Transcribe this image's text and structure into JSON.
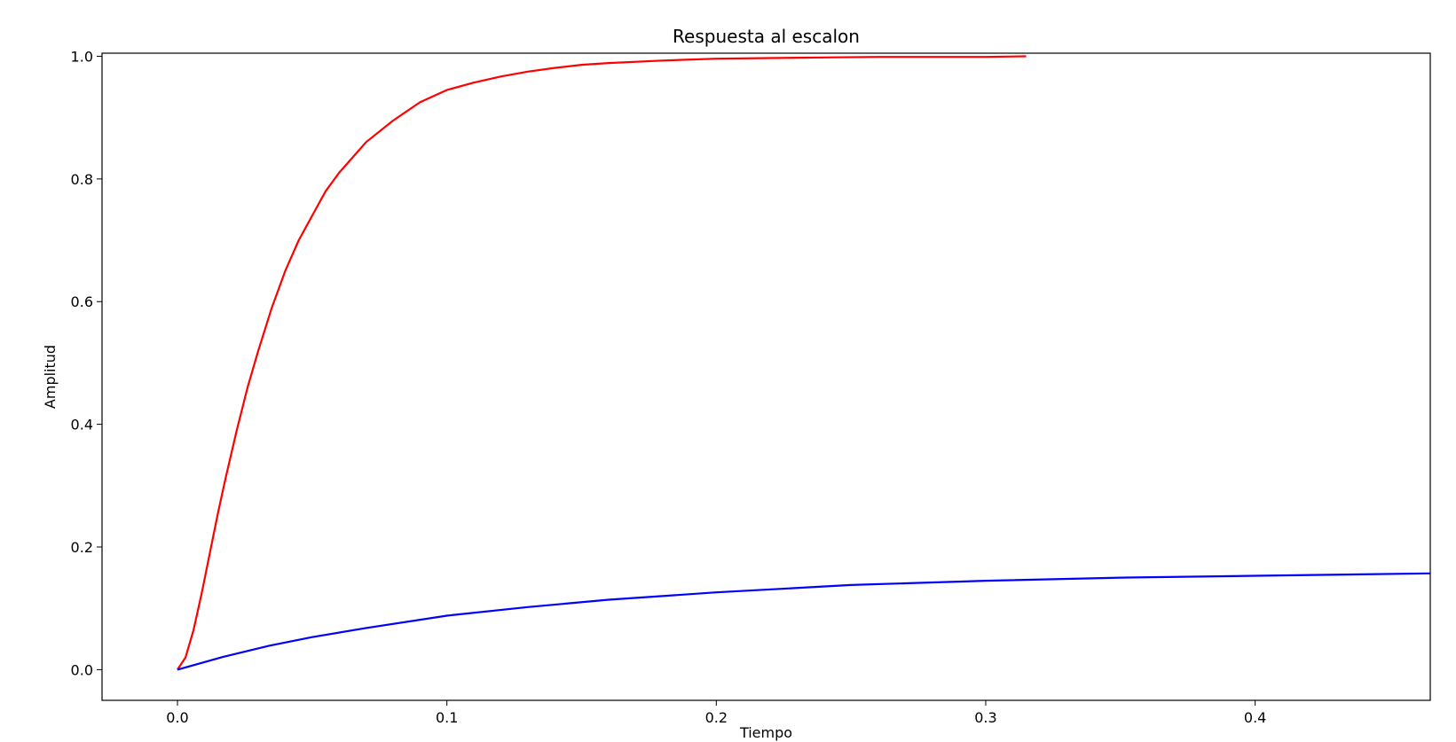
{
  "chart_data": {
    "type": "line",
    "title": "Respuesta al escalon",
    "xlabel": "Tiempo",
    "ylabel": "Amplitud",
    "xlim": [
      -0.028,
      0.465
    ],
    "ylim": [
      -0.05,
      1.005
    ],
    "xticks": [
      0.0,
      0.1,
      0.2,
      0.3,
      0.4
    ],
    "xtick_labels": [
      "0.0",
      "0.1",
      "0.2",
      "0.3",
      "0.4"
    ],
    "yticks": [
      0.0,
      0.2,
      0.4,
      0.6,
      0.8,
      1.0
    ],
    "ytick_labels": [
      "0.0",
      "0.2",
      "0.4",
      "0.6",
      "0.8",
      "1.0"
    ],
    "grid": false,
    "legend": "none",
    "series": [
      {
        "color": "#ff0000",
        "x": [
          0.0,
          0.003,
          0.006,
          0.009,
          0.012,
          0.015,
          0.018,
          0.022,
          0.026,
          0.03,
          0.035,
          0.04,
          0.045,
          0.05,
          0.055,
          0.06,
          0.065,
          0.07,
          0.08,
          0.09,
          0.1,
          0.11,
          0.12,
          0.13,
          0.14,
          0.15,
          0.16,
          0.18,
          0.2,
          0.22,
          0.24,
          0.26,
          0.28,
          0.3,
          0.315
        ],
        "y": [
          0.0,
          0.02,
          0.065,
          0.125,
          0.19,
          0.255,
          0.315,
          0.39,
          0.46,
          0.52,
          0.59,
          0.65,
          0.7,
          0.74,
          0.78,
          0.81,
          0.835,
          0.86,
          0.895,
          0.925,
          0.945,
          0.957,
          0.967,
          0.975,
          0.981,
          0.986,
          0.989,
          0.993,
          0.996,
          0.997,
          0.998,
          0.999,
          0.999,
          0.999,
          1.0
        ]
      },
      {
        "color": "#0000ff",
        "x": [
          0.0,
          0.017,
          0.034,
          0.05,
          0.07,
          0.1,
          0.13,
          0.16,
          0.2,
          0.25,
          0.3,
          0.35,
          0.4,
          0.465
        ],
        "y": [
          0.0,
          0.021,
          0.039,
          0.053,
          0.068,
          0.088,
          0.102,
          0.114,
          0.126,
          0.138,
          0.145,
          0.15,
          0.153,
          0.157
        ]
      }
    ]
  }
}
